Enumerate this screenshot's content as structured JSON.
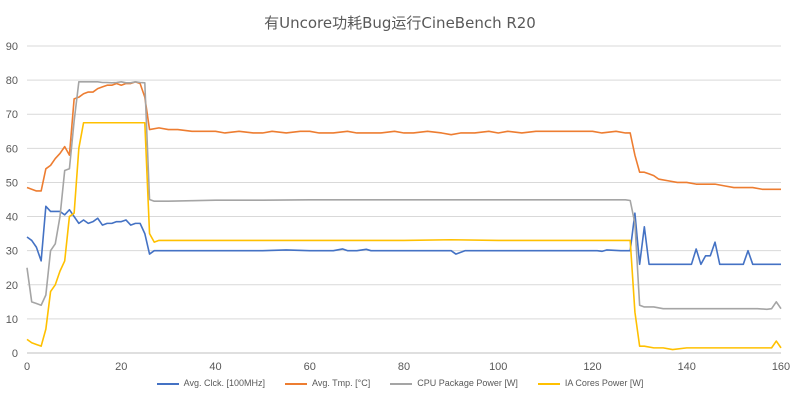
{
  "chart_data": {
    "type": "line",
    "title": "有Uncore功耗Bug运行CineBench R20",
    "xlabel": "",
    "ylabel": "",
    "xlim": [
      0,
      160
    ],
    "ylim": [
      0,
      90
    ],
    "x_ticks": [
      0,
      20,
      40,
      60,
      80,
      100,
      120,
      140,
      160
    ],
    "y_ticks": [
      0,
      10,
      20,
      30,
      40,
      50,
      60,
      70,
      80,
      90
    ],
    "grid": "horizontal",
    "legend_position": "bottom",
    "series": [
      {
        "name": "Avg. Clck. [100MHz]",
        "color": "#4472C4",
        "points": [
          [
            0,
            34
          ],
          [
            1,
            33
          ],
          [
            2,
            31
          ],
          [
            3,
            27
          ],
          [
            4,
            43
          ],
          [
            5,
            41.5
          ],
          [
            6,
            41.5
          ],
          [
            7,
            41.5
          ],
          [
            8,
            40.5
          ],
          [
            9,
            42
          ],
          [
            10,
            40
          ],
          [
            11,
            38
          ],
          [
            12,
            39
          ],
          [
            13,
            38
          ],
          [
            14,
            38.5
          ],
          [
            15,
            39.5
          ],
          [
            16,
            37.5
          ],
          [
            17,
            38
          ],
          [
            18,
            38
          ],
          [
            19,
            38.5
          ],
          [
            20,
            38.5
          ],
          [
            21,
            39
          ],
          [
            22,
            37.5
          ],
          [
            23,
            38
          ],
          [
            24,
            38
          ],
          [
            25,
            35
          ],
          [
            26,
            29
          ],
          [
            27,
            30
          ],
          [
            28,
            30
          ],
          [
            40,
            30
          ],
          [
            50,
            30
          ],
          [
            55,
            30.2
          ],
          [
            60,
            30
          ],
          [
            65,
            30
          ],
          [
            67,
            30.5
          ],
          [
            68,
            30
          ],
          [
            70,
            30
          ],
          [
            72,
            30.4
          ],
          [
            73,
            30
          ],
          [
            80,
            30
          ],
          [
            90,
            30
          ],
          [
            91,
            29
          ],
          [
            92,
            29.5
          ],
          [
            93,
            30
          ],
          [
            100,
            30
          ],
          [
            110,
            30
          ],
          [
            120,
            30
          ],
          [
            121,
            30
          ],
          [
            122,
            29.8
          ],
          [
            123,
            30.2
          ],
          [
            126,
            30
          ],
          [
            128,
            30
          ],
          [
            129,
            41
          ],
          [
            130,
            26
          ],
          [
            131,
            37
          ],
          [
            132,
            26
          ],
          [
            135,
            26
          ],
          [
            140,
            26
          ],
          [
            141,
            26
          ],
          [
            142,
            30.5
          ],
          [
            143,
            26
          ],
          [
            144,
            28.5
          ],
          [
            145,
            28.5
          ],
          [
            146,
            32.5
          ],
          [
            147,
            26
          ],
          [
            150,
            26
          ],
          [
            152,
            26
          ],
          [
            153,
            30
          ],
          [
            154,
            26
          ],
          [
            160,
            26
          ]
        ]
      },
      {
        "name": "Avg. Tmp. [°C]",
        "color": "#ED7D31",
        "points": [
          [
            0,
            48.5
          ],
          [
            1,
            48
          ],
          [
            2,
            47.5
          ],
          [
            3,
            47.5
          ],
          [
            4,
            54
          ],
          [
            5,
            55
          ],
          [
            6,
            57
          ],
          [
            7,
            58.5
          ],
          [
            8,
            60.5
          ],
          [
            9,
            58
          ],
          [
            10,
            74.5
          ],
          [
            11,
            75
          ],
          [
            12,
            76
          ],
          [
            13,
            76.5
          ],
          [
            14,
            76.5
          ],
          [
            15,
            77.5
          ],
          [
            16,
            78
          ],
          [
            17,
            78.5
          ],
          [
            18,
            78.5
          ],
          [
            19,
            79
          ],
          [
            20,
            78.5
          ],
          [
            21,
            79
          ],
          [
            22,
            79
          ],
          [
            23,
            79.5
          ],
          [
            24,
            79
          ],
          [
            25,
            75
          ],
          [
            26,
            65.5
          ],
          [
            28,
            66
          ],
          [
            30,
            65.5
          ],
          [
            32,
            65.5
          ],
          [
            35,
            65
          ],
          [
            40,
            65
          ],
          [
            42,
            64.5
          ],
          [
            45,
            65
          ],
          [
            48,
            64.5
          ],
          [
            50,
            64.5
          ],
          [
            52,
            65
          ],
          [
            55,
            64.5
          ],
          [
            58,
            65
          ],
          [
            60,
            65
          ],
          [
            62,
            64.5
          ],
          [
            65,
            64.5
          ],
          [
            68,
            65
          ],
          [
            70,
            64.5
          ],
          [
            72,
            64.5
          ],
          [
            75,
            64.5
          ],
          [
            78,
            65
          ],
          [
            80,
            64.5
          ],
          [
            82,
            64.5
          ],
          [
            85,
            65
          ],
          [
            88,
            64.5
          ],
          [
            90,
            64
          ],
          [
            92,
            64.5
          ],
          [
            95,
            64.5
          ],
          [
            98,
            65
          ],
          [
            100,
            64.5
          ],
          [
            102,
            65
          ],
          [
            105,
            64.5
          ],
          [
            108,
            65
          ],
          [
            110,
            65
          ],
          [
            115,
            65
          ],
          [
            118,
            65
          ],
          [
            120,
            65
          ],
          [
            122,
            64.5
          ],
          [
            125,
            65
          ],
          [
            127,
            64.5
          ],
          [
            128,
            64.5
          ],
          [
            129,
            58
          ],
          [
            130,
            53
          ],
          [
            131,
            53
          ],
          [
            132,
            52.5
          ],
          [
            133,
            52
          ],
          [
            134,
            51
          ],
          [
            136,
            50.5
          ],
          [
            138,
            50
          ],
          [
            140,
            50
          ],
          [
            142,
            49.5
          ],
          [
            144,
            49.5
          ],
          [
            146,
            49.5
          ],
          [
            148,
            49
          ],
          [
            150,
            48.5
          ],
          [
            152,
            48.5
          ],
          [
            154,
            48.5
          ],
          [
            156,
            48
          ],
          [
            158,
            48
          ],
          [
            160,
            48
          ]
        ]
      },
      {
        "name": "CPU Package Power [W]",
        "color": "#A5A5A5",
        "points": [
          [
            0,
            25
          ],
          [
            1,
            15
          ],
          [
            2,
            14.5
          ],
          [
            3,
            14
          ],
          [
            4,
            17
          ],
          [
            5,
            30
          ],
          [
            6,
            32
          ],
          [
            7,
            40
          ],
          [
            8,
            53.5
          ],
          [
            9,
            54
          ],
          [
            10,
            68
          ],
          [
            11,
            79.5
          ],
          [
            12,
            79.5
          ],
          [
            13,
            79.5
          ],
          [
            14,
            79.5
          ],
          [
            15,
            79.5
          ],
          [
            16,
            79.3
          ],
          [
            17,
            79.3
          ],
          [
            18,
            79.2
          ],
          [
            19,
            79.3
          ],
          [
            20,
            79.5
          ],
          [
            21,
            79.2
          ],
          [
            22,
            79.2
          ],
          [
            23,
            79.5
          ],
          [
            24,
            79.3
          ],
          [
            25,
            79.2
          ],
          [
            26,
            45
          ],
          [
            27,
            44.5
          ],
          [
            30,
            44.5
          ],
          [
            40,
            44.8
          ],
          [
            50,
            44.8
          ],
          [
            60,
            44.9
          ],
          [
            70,
            44.9
          ],
          [
            80,
            44.9
          ],
          [
            90,
            44.9
          ],
          [
            100,
            44.9
          ],
          [
            110,
            44.9
          ],
          [
            120,
            44.9
          ],
          [
            127,
            44.9
          ],
          [
            128,
            44.7
          ],
          [
            129,
            38
          ],
          [
            130,
            14
          ],
          [
            131,
            13.5
          ],
          [
            133,
            13.5
          ],
          [
            135,
            13
          ],
          [
            140,
            13
          ],
          [
            145,
            13
          ],
          [
            150,
            13
          ],
          [
            155,
            13
          ],
          [
            157,
            12.8
          ],
          [
            158,
            13
          ],
          [
            159,
            15
          ],
          [
            160,
            13
          ]
        ]
      },
      {
        "name": "IA Cores Power [W]",
        "color": "#FFC000",
        "points": [
          [
            0,
            4
          ],
          [
            1,
            3
          ],
          [
            2,
            2.5
          ],
          [
            3,
            2
          ],
          [
            4,
            7
          ],
          [
            5,
            18
          ],
          [
            6,
            20
          ],
          [
            7,
            24
          ],
          [
            8,
            27
          ],
          [
            9,
            40
          ],
          [
            10,
            41
          ],
          [
            11,
            60
          ],
          [
            12,
            67.5
          ],
          [
            13,
            67.5
          ],
          [
            14,
            67.5
          ],
          [
            15,
            67.5
          ],
          [
            16,
            67.5
          ],
          [
            17,
            67.5
          ],
          [
            18,
            67.5
          ],
          [
            19,
            67.5
          ],
          [
            20,
            67.5
          ],
          [
            21,
            67.5
          ],
          [
            22,
            67.5
          ],
          [
            23,
            67.5
          ],
          [
            24,
            67.5
          ],
          [
            25,
            67.5
          ],
          [
            26,
            35
          ],
          [
            27,
            32.5
          ],
          [
            28,
            33
          ],
          [
            40,
            33
          ],
          [
            50,
            33
          ],
          [
            60,
            33
          ],
          [
            70,
            33
          ],
          [
            80,
            33
          ],
          [
            90,
            33.2
          ],
          [
            100,
            33
          ],
          [
            110,
            33
          ],
          [
            120,
            33
          ],
          [
            127,
            33
          ],
          [
            128,
            33
          ],
          [
            129,
            12
          ],
          [
            130,
            2
          ],
          [
            131,
            2
          ],
          [
            133,
            1.5
          ],
          [
            135,
            1.5
          ],
          [
            137,
            1
          ],
          [
            140,
            1.5
          ],
          [
            145,
            1.5
          ],
          [
            150,
            1.5
          ],
          [
            155,
            1.5
          ],
          [
            157,
            1.5
          ],
          [
            158,
            1.5
          ],
          [
            159,
            3.5
          ],
          [
            160,
            1.5
          ]
        ]
      }
    ]
  }
}
